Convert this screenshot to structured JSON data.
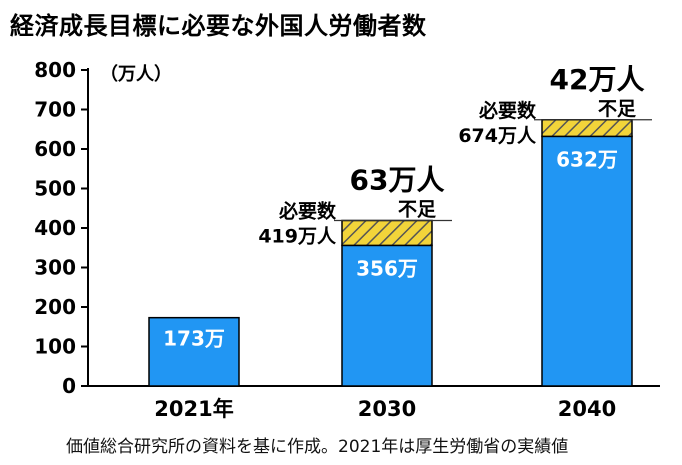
{
  "title": "経済成長目標に必要な外国人労働者数",
  "source": "価値総合研究所の資料を基に作成。2021年は厚生労働省の実績値",
  "colors": {
    "bar": "#2196f3",
    "shortfall": "#f2d43a",
    "stripe": "#555555",
    "axis": "#000000"
  },
  "chart_data": {
    "type": "bar",
    "unit_label": "（万人）",
    "categories": [
      "2021年",
      "2030",
      "2040"
    ],
    "ylim": [
      0,
      800
    ],
    "yticks": [
      "0",
      "100",
      "200",
      "300",
      "400",
      "500",
      "600",
      "700",
      "800"
    ],
    "series": [
      {
        "name": "",
        "values": [
          173,
          356,
          632
        ]
      },
      {
        "name": "不足",
        "values": [
          0,
          63,
          42
        ]
      }
    ],
    "bar_labels": [
      "173万",
      "356万",
      "632万"
    ],
    "annotations": [
      {
        "category_index": 1,
        "required_value": 419,
        "required_title": "必要数",
        "required_text": "419万人",
        "shortfall_title": "不足",
        "shortfall_text": "63万人"
      },
      {
        "category_index": 2,
        "required_value": 674,
        "required_title": "必要数",
        "required_text": "674万人",
        "shortfall_title": "不足",
        "shortfall_text": "42万人"
      }
    ]
  }
}
